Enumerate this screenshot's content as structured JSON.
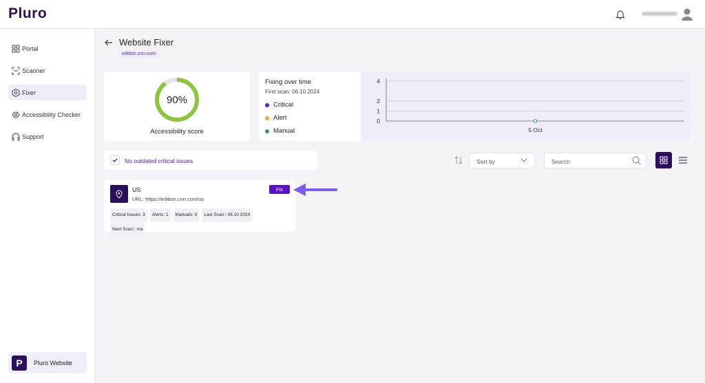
{
  "header": {
    "logo": "Pluro"
  },
  "sidebar": {
    "items": [
      "Portal",
      "Scanner",
      "Fixer",
      "Accessibility Checker",
      "Support"
    ],
    "active": 2,
    "workspace": "Pluro Website"
  },
  "page": {
    "title": "Website Fixer",
    "domain": "edition.cnn.com"
  },
  "score": {
    "value": 90,
    "label": "90%",
    "caption": "Accessibility score",
    "color": "#8cc63f"
  },
  "chart": {
    "title": "Fixing over time",
    "subtitle": "First scan: 06.10.2024",
    "series": [
      {
        "name": "Critical",
        "color": "#5b1fd1"
      },
      {
        "name": "Alert",
        "color": "#f5a623"
      },
      {
        "name": "Manual",
        "color": "#2e9e5e"
      }
    ],
    "x": [
      "5 Oct"
    ],
    "values": [
      0
    ],
    "ylim": [
      0,
      4
    ],
    "yticks": [
      0,
      1,
      2,
      4
    ]
  },
  "filter": {
    "label": "No outdated critical issues"
  },
  "toolbar": {
    "sort": "Sort by",
    "search": "Search"
  },
  "sites": [
    {
      "name": "US",
      "url": "URL: https://edition.cnn.com/us",
      "button": "Fix",
      "tags": [
        "Critical Issues: 3",
        "Alerts: 1",
        "Manuals: 0",
        "Last Scan:: 06.10.2024",
        "Next Scan:: n/a"
      ]
    }
  ]
}
